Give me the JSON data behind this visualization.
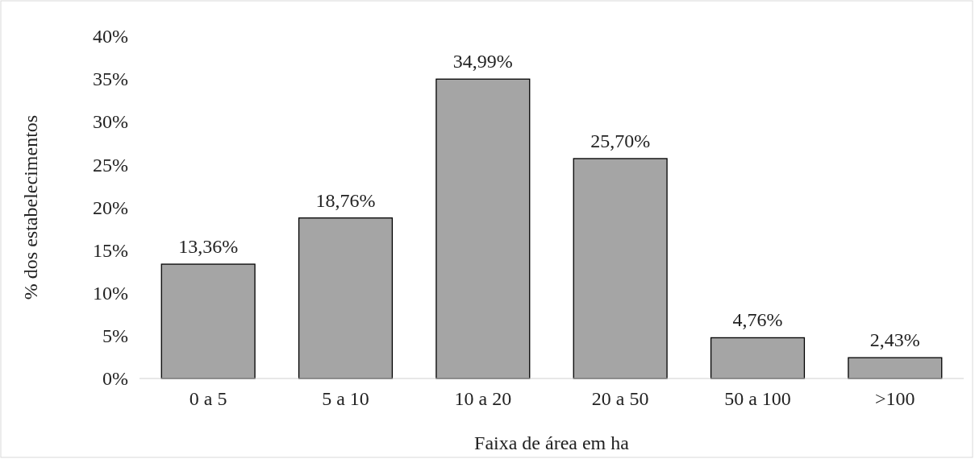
{
  "chart_data": {
    "type": "bar",
    "xlabel": "Faixa de área em ha",
    "ylabel": "% dos estabelecimentos",
    "categories": [
      "0 a 5",
      "5 a 10",
      "10 a 20",
      "20 a 50",
      "50 a 100",
      ">100"
    ],
    "values": [
      13.36,
      18.76,
      34.99,
      25.7,
      4.76,
      2.43
    ],
    "value_labels": [
      "13,36%",
      "18,76%",
      "34,99%",
      "25,70%",
      "4,76%",
      "2,43%"
    ],
    "color": "#a5a5a5",
    "ylim": [
      0,
      40
    ],
    "yticks": [
      {
        "value": 0,
        "label": "0%"
      },
      {
        "value": 5,
        "label": "5%"
      },
      {
        "value": 10,
        "label": "10%"
      },
      {
        "value": 15,
        "label": "15%"
      },
      {
        "value": 20,
        "label": "20%"
      },
      {
        "value": 25,
        "label": "25%"
      },
      {
        "value": 30,
        "label": "30%"
      },
      {
        "value": 35,
        "label": "35%"
      },
      {
        "value": 40,
        "label": "40%"
      }
    ],
    "grid": false
  }
}
